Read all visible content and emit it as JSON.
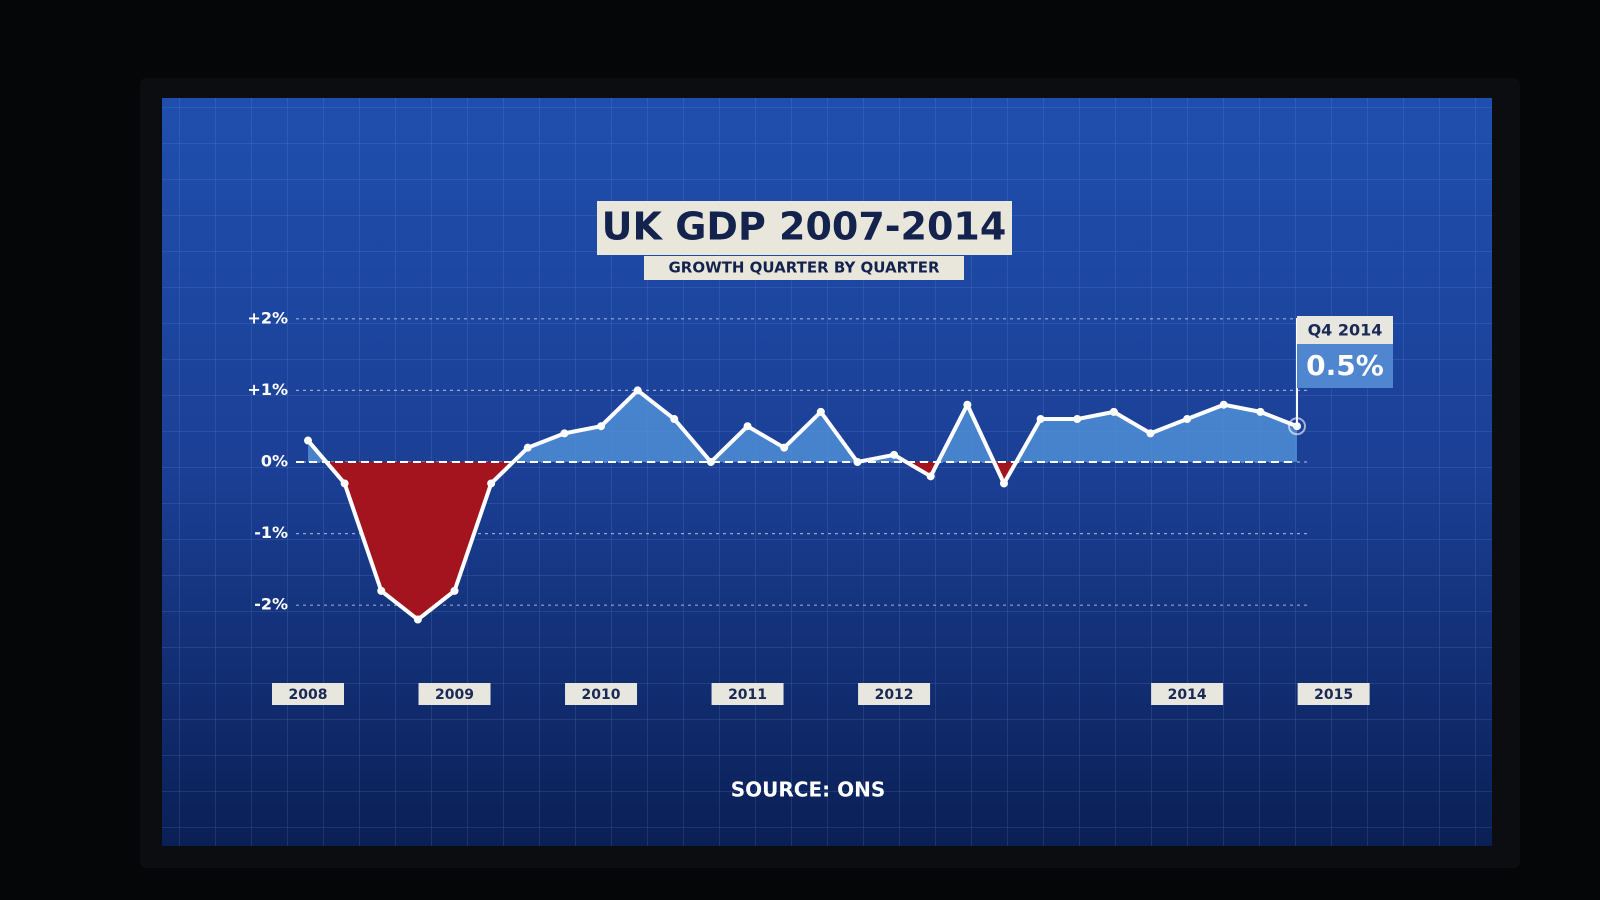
{
  "chart_data": {
    "type": "line",
    "title": "UK GDP 2007-2014",
    "subtitle": "GROWTH QUARTER BY QUARTER",
    "source": "SOURCE: ONS",
    "x": [
      2008,
      2008.25,
      2008.5,
      2008.75,
      2009,
      2009.25,
      2009.5,
      2009.75,
      2010,
      2010.25,
      2010.5,
      2010.75,
      2011,
      2011.25,
      2011.5,
      2011.75,
      2012,
      2012.25,
      2012.5,
      2012.75,
      2013,
      2013.25,
      2013.5,
      2013.75,
      2014,
      2014.25,
      2014.5,
      2014.75
    ],
    "series": [
      {
        "color": "#ffffff",
        "values": [
          0.3,
          -0.3,
          -1.8,
          -2.2,
          -1.8,
          -0.3,
          0.2,
          0.4,
          0.5,
          1.0,
          0.6,
          0.0,
          0.5,
          0.2,
          0.7,
          0.0,
          0.1,
          -0.2,
          0.8,
          -0.3,
          0.6,
          0.6,
          0.7,
          0.4,
          0.6,
          0.8,
          0.7,
          0.5
        ],
        "value_labels": [
          null,
          null,
          null,
          null,
          null,
          null,
          null,
          null,
          null,
          null,
          null,
          null,
          null,
          null,
          null,
          null,
          null,
          null,
          null,
          null,
          null,
          null,
          null,
          null,
          null,
          null,
          null,
          "0.5%"
        ]
      }
    ],
    "annotation": "Q4 2014",
    "positive_color": "#4f8fd6",
    "negative_color": "#a3141f",
    "xlim": [
      2008,
      2014.75
    ],
    "xticks": [
      2008,
      2009,
      2010,
      2011,
      2012,
      2014,
      2015
    ],
    "ylim": [
      -2.5,
      2.5
    ],
    "yticks": [
      {
        "value": 2,
        "label": "+2%"
      },
      {
        "value": 1,
        "label": "+1%"
      },
      {
        "value": 0,
        "label": "0%"
      },
      {
        "value": -1,
        "label": "-1%"
      },
      {
        "value": -2,
        "label": "-2%"
      }
    ],
    "grid": true
  }
}
